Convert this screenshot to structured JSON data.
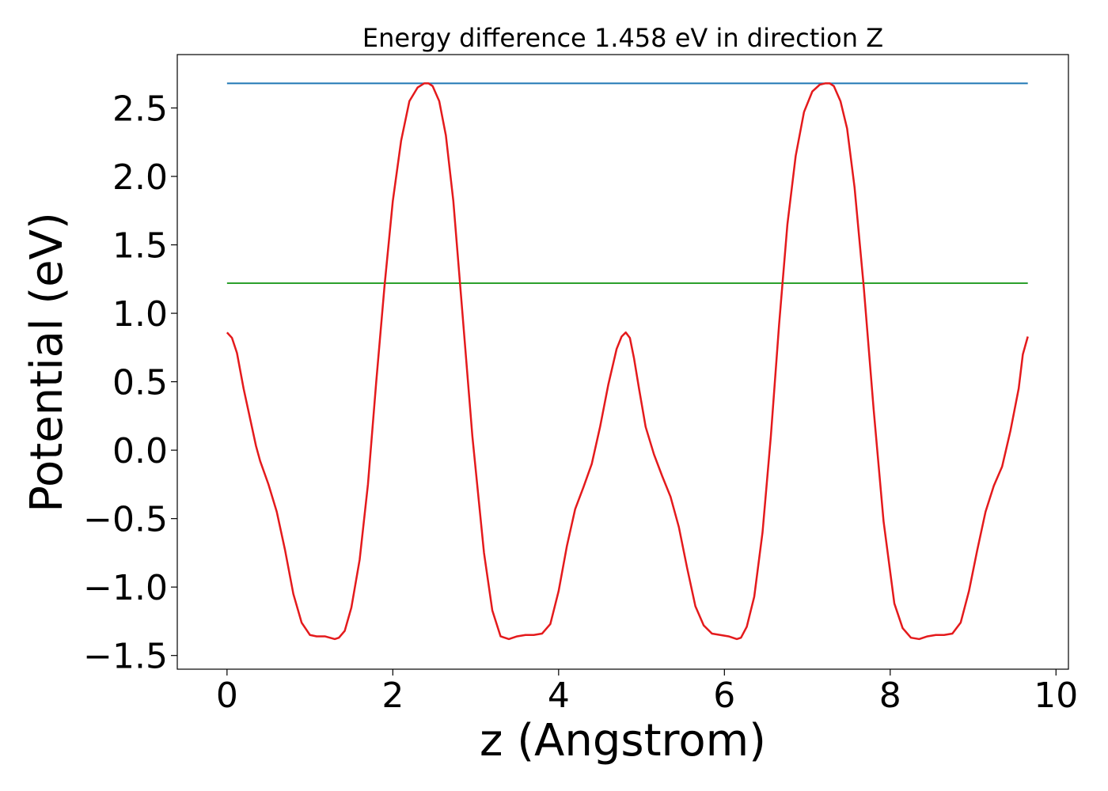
{
  "chart_data": {
    "type": "line",
    "title": "Energy difference 1.458 eV in direction Z",
    "xlabel": "z (Angstrom)",
    "ylabel": "Potential (eV)",
    "xlim": [
      -0.6,
      10.15
    ],
    "ylim": [
      -1.6,
      2.89
    ],
    "x_ticks": [
      0,
      2,
      4,
      6,
      8,
      10
    ],
    "x_tick_labels": [
      "0",
      "2",
      "4",
      "6",
      "8",
      "10"
    ],
    "y_ticks": [
      -1.5,
      -1.0,
      -0.5,
      0.0,
      0.5,
      1.0,
      1.5,
      2.0,
      2.5
    ],
    "y_tick_labels": [
      "−1.5",
      "−1.0",
      "−0.5",
      "0.0",
      "0.5",
      "1.0",
      "1.5",
      "2.0",
      "2.5"
    ],
    "grid": false,
    "series": [
      {
        "color": "#1f77b4",
        "x": [
          0,
          9.66
        ],
        "y": [
          2.68,
          2.68
        ]
      },
      {
        "color": "#2ca02c",
        "x": [
          0,
          9.66
        ],
        "y": [
          1.22,
          1.22
        ]
      },
      {
        "color": "#e41a1c",
        "x": [
          0,
          0.06,
          0.12,
          0.2,
          0.3,
          0.35,
          0.4,
          0.5,
          0.6,
          0.7,
          0.8,
          0.9,
          1.0,
          1.08,
          1.18,
          1.3,
          1.35,
          1.42,
          1.5,
          1.6,
          1.7,
          1.8,
          1.9,
          2.0,
          2.1,
          2.2,
          2.3,
          2.38,
          2.43,
          2.48,
          2.56,
          2.64,
          2.73,
          2.84,
          2.96,
          3.1,
          3.2,
          3.3,
          3.4,
          3.5,
          3.6,
          3.7,
          3.8,
          3.9,
          4.0,
          4.1,
          4.2,
          4.3,
          4.4,
          4.5,
          4.6,
          4.7,
          4.76,
          4.81,
          4.86,
          4.91,
          4.97,
          5.05,
          5.15,
          5.25,
          5.35,
          5.45,
          5.55,
          5.65,
          5.75,
          5.85,
          5.95,
          6.05,
          6.15,
          6.2,
          6.27,
          6.36,
          6.46,
          6.56,
          6.66,
          6.76,
          6.86,
          6.96,
          7.06,
          7.15,
          7.22,
          7.27,
          7.32,
          7.4,
          7.48,
          7.57,
          7.68,
          7.8,
          7.92,
          8.05,
          8.15,
          8.25,
          8.35,
          8.45,
          8.55,
          8.65,
          8.75,
          8.85,
          8.95,
          9.05,
          9.15,
          9.25,
          9.35,
          9.45,
          9.55,
          9.6,
          9.66
        ],
        "y": [
          0.86,
          0.82,
          0.71,
          0.45,
          0.17,
          0.03,
          -0.08,
          -0.25,
          -0.45,
          -0.73,
          -1.05,
          -1.26,
          -1.35,
          -1.36,
          -1.36,
          -1.38,
          -1.37,
          -1.32,
          -1.15,
          -0.8,
          -0.25,
          0.5,
          1.2,
          1.82,
          2.26,
          2.55,
          2.65,
          2.68,
          2.68,
          2.66,
          2.55,
          2.3,
          1.82,
          1.0,
          0.1,
          -0.75,
          -1.17,
          -1.36,
          -1.38,
          -1.36,
          -1.35,
          -1.35,
          -1.34,
          -1.27,
          -1.03,
          -0.7,
          -0.43,
          -0.27,
          -0.1,
          0.17,
          0.48,
          0.74,
          0.83,
          0.86,
          0.82,
          0.67,
          0.45,
          0.17,
          -0.03,
          -0.19,
          -0.34,
          -0.56,
          -0.86,
          -1.14,
          -1.28,
          -1.34,
          -1.35,
          -1.36,
          -1.38,
          -1.37,
          -1.29,
          -1.07,
          -0.6,
          0.1,
          0.92,
          1.65,
          2.15,
          2.47,
          2.62,
          2.67,
          2.68,
          2.68,
          2.66,
          2.55,
          2.35,
          1.92,
          1.2,
          0.3,
          -0.52,
          -1.12,
          -1.3,
          -1.37,
          -1.38,
          -1.36,
          -1.35,
          -1.35,
          -1.34,
          -1.26,
          -1.03,
          -0.73,
          -0.45,
          -0.26,
          -0.12,
          0.14,
          0.45,
          0.7,
          0.83
        ]
      }
    ]
  }
}
